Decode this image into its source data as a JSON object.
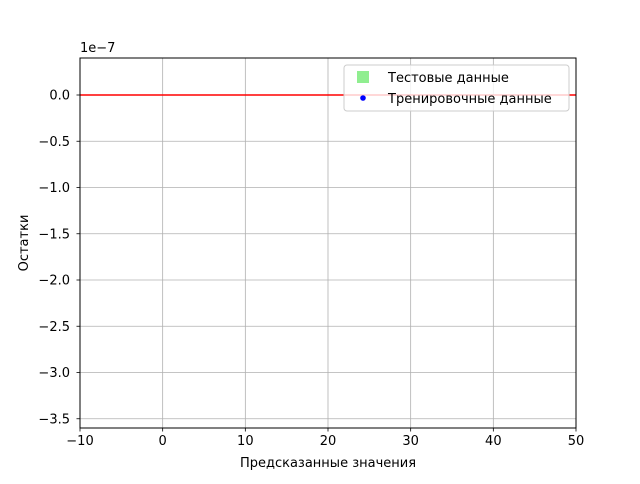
{
  "chart_data": {
    "type": "scatter",
    "title": "",
    "xlabel": "Предсказанные значения",
    "ylabel": "Остатки",
    "xlim": [
      -10,
      50
    ],
    "ylim": [
      -3.6e-07,
      4e-08
    ],
    "x_ticks": [
      -10,
      0,
      10,
      20,
      30,
      40,
      50
    ],
    "x_tick_labels": [
      "−10",
      "0",
      "10",
      "20",
      "30",
      "40",
      "50"
    ],
    "y_ticks": [
      0.0,
      -5e-08,
      -1e-07,
      -1.5e-07,
      -2e-07,
      -2.5e-07,
      -3e-07,
      -3.5e-07
    ],
    "y_tick_labels": [
      "0.0",
      "−0.5",
      "−1.0",
      "−1.5",
      "−2.0",
      "−2.5",
      "−3.0",
      "−3.5"
    ],
    "offset_text": "1e−7",
    "grid": true,
    "legend_position": "upper right",
    "series": [
      {
        "name": "Тестовые данные",
        "marker": "square",
        "color": "#90ee90",
        "x": [],
        "y": []
      },
      {
        "name": "Тренировочные данные",
        "marker": "circle",
        "color": "#0000ff",
        "x": [],
        "y": []
      }
    ],
    "reference_line": {
      "y": 0,
      "color": "#ff0000"
    }
  }
}
